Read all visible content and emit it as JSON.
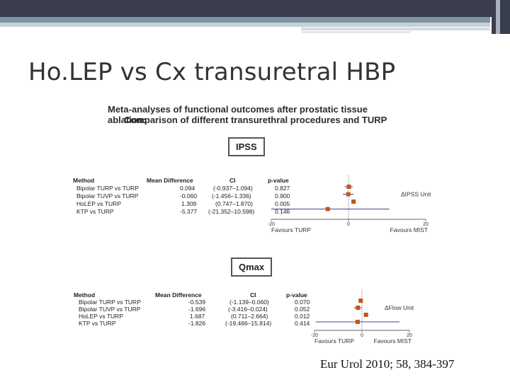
{
  "slide": {
    "title": "Ho.LEP vs Cx transuretral HBP",
    "citation": "Eur Urol 2010; 58, 384-397"
  },
  "figure": {
    "title_line1": "Meta-analyses of functional outcomes after prostatic tissue ablation:",
    "title_line2": "Comparison of different transurethral procedures  and TURP"
  },
  "chart_data": [
    {
      "type": "forest",
      "label": "IPSS",
      "columns": [
        "Method",
        "Mean Difference",
        "CI",
        "p-value"
      ],
      "rows": [
        {
          "method": "Bipolar TURP vs TURP",
          "md": 0.094,
          "md_text": "0.094",
          "ci_text": "(-0.937–1.094)",
          "ci": [
            -0.937,
            1.094
          ],
          "p": "0.827"
        },
        {
          "method": "Bipolar TUVP vs TURP",
          "md": -0.06,
          "md_text": "-0.060",
          "ci_text": "(-1.456–1.336)",
          "ci": [
            -1.456,
            1.336
          ],
          "p": "0.900"
        },
        {
          "method": "HoLEP vs TURP",
          "md": 1.309,
          "md_text": "1.309",
          "ci_text": "(0.747–1.870)",
          "ci": [
            0.747,
            1.87
          ],
          "p": "0.005"
        },
        {
          "method": "KTP vs TURP",
          "md": -5.377,
          "md_text": "-5.377",
          "ci_text": "(-21.352–10.598)",
          "ci": [
            -21.352,
            10.598
          ],
          "p": "0.146"
        }
      ],
      "xlim": [
        -20,
        20
      ],
      "ticks": [
        "-20",
        "0",
        "20"
      ],
      "unit_label": "ΔIPSS Unit",
      "favours_left": "Favours TURP",
      "favours_right": "Favours MIST"
    },
    {
      "type": "forest",
      "label": "Qmax",
      "columns": [
        "Method",
        "Mean Difference",
        "CI",
        "p-value"
      ],
      "rows": [
        {
          "method": "Bipolar TURP vs TURP",
          "md": -0.539,
          "md_text": "-0.539",
          "ci_text": "(-1.139–0.060)",
          "ci": [
            -1.139,
            0.06
          ],
          "p": "0.070"
        },
        {
          "method": "Bipolar TUVP vs TURP",
          "md": -1.696,
          "md_text": "-1.696",
          "ci_text": "(-3.416–0.024)",
          "ci": [
            -3.416,
            0.024
          ],
          "p": "0.052"
        },
        {
          "method": "HoLEP vs TURP",
          "md": 1.687,
          "md_text": "1.687",
          "ci_text": "(0.711–2.664)",
          "ci": [
            0.711,
            2.664
          ],
          "p": "0.012"
        },
        {
          "method": "KTP vs TURP",
          "md": -1.826,
          "md_text": "-1.826",
          "ci_text": "(-19.466–15.814)",
          "ci": [
            -19.466,
            15.814
          ],
          "p": "0.414"
        }
      ],
      "xlim": [
        -20,
        20
      ],
      "ticks": [
        "-20",
        "0",
        "20"
      ],
      "unit_label": "ΔFlow Unit",
      "favours_left": "Favours TURP",
      "favours_right": "Favours MIST"
    }
  ],
  "colors": {
    "marker": "#c0561c",
    "ci_line": "#4a3f95",
    "axis": "#333333"
  }
}
